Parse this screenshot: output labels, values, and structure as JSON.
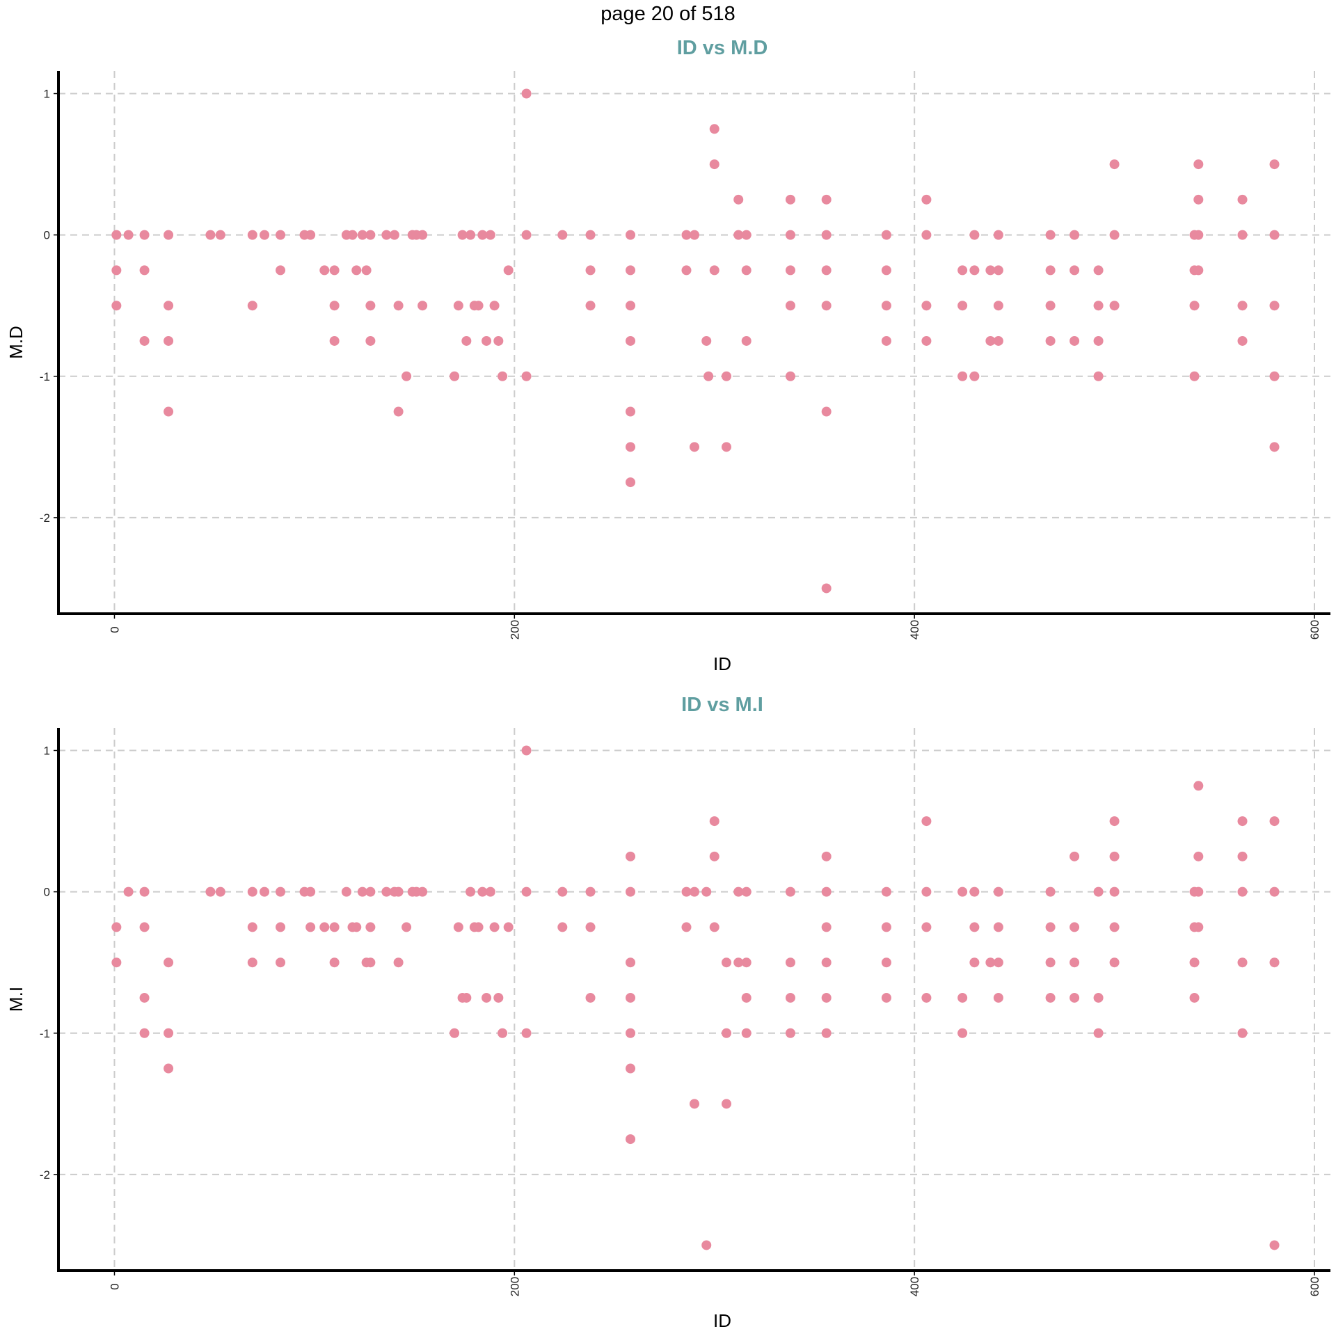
{
  "page_header": "page 20 of 518",
  "colors": {
    "point": "#e8899e",
    "title": "#5f9ea0",
    "grid": "#cccccc"
  },
  "chart_data": [
    {
      "type": "scatter",
      "title": "ID vs M.D",
      "xlabel": "ID",
      "ylabel": "M.D",
      "xlim": [
        -28,
        608
      ],
      "ylim": [
        -2.68,
        1.16
      ],
      "xticks": [
        0,
        200,
        400,
        600
      ],
      "yticks": [
        1,
        0,
        -1,
        -2
      ],
      "grid": true,
      "points": [
        [
          1,
          0
        ],
        [
          1,
          -0.25
        ],
        [
          1,
          -0.5
        ],
        [
          7,
          0
        ],
        [
          15,
          0
        ],
        [
          15,
          -0.25
        ],
        [
          15,
          -0.75
        ],
        [
          27,
          0
        ],
        [
          27,
          -0.5
        ],
        [
          27,
          -0.75
        ],
        [
          27,
          -1.25
        ],
        [
          48,
          0
        ],
        [
          53,
          0
        ],
        [
          69,
          0
        ],
        [
          69,
          -0.5
        ],
        [
          75,
          0
        ],
        [
          83,
          0
        ],
        [
          83,
          -0.25
        ],
        [
          95,
          0
        ],
        [
          98,
          0
        ],
        [
          105,
          -0.25
        ],
        [
          110,
          -0.25
        ],
        [
          110,
          -0.5
        ],
        [
          110,
          -0.75
        ],
        [
          116,
          0
        ],
        [
          119,
          0
        ],
        [
          121,
          -0.25
        ],
        [
          124,
          0
        ],
        [
          126,
          -0.25
        ],
        [
          128,
          0
        ],
        [
          128,
          -0.5
        ],
        [
          128,
          -0.75
        ],
        [
          136,
          0
        ],
        [
          140,
          0
        ],
        [
          142,
          -0.5
        ],
        [
          142,
          -1.25
        ],
        [
          146,
          -1
        ],
        [
          149,
          0
        ],
        [
          151,
          0
        ],
        [
          154,
          0
        ],
        [
          154,
          -0.5
        ],
        [
          170,
          -1
        ],
        [
          172,
          -0.5
        ],
        [
          174,
          0
        ],
        [
          176,
          -0.75
        ],
        [
          178,
          0
        ],
        [
          180,
          -0.5
        ],
        [
          182,
          -0.5
        ],
        [
          184,
          0
        ],
        [
          186,
          -0.75
        ],
        [
          188,
          0
        ],
        [
          190,
          -0.5
        ],
        [
          192,
          -0.75
        ],
        [
          194,
          -1
        ],
        [
          197,
          -0.25
        ],
        [
          206,
          1
        ],
        [
          206,
          0
        ],
        [
          206,
          -1
        ],
        [
          224,
          0
        ],
        [
          238,
          0
        ],
        [
          238,
          -0.25
        ],
        [
          238,
          -0.5
        ],
        [
          258,
          0
        ],
        [
          258,
          -0.25
        ],
        [
          258,
          -0.5
        ],
        [
          258,
          -0.75
        ],
        [
          258,
          -1.25
        ],
        [
          258,
          -1.5
        ],
        [
          258,
          -1.75
        ],
        [
          286,
          0
        ],
        [
          286,
          -0.25
        ],
        [
          290,
          0
        ],
        [
          290,
          -1.5
        ],
        [
          296,
          -0.75
        ],
        [
          297,
          -1
        ],
        [
          300,
          0.75
        ],
        [
          300,
          0.5
        ],
        [
          300,
          -0.25
        ],
        [
          312,
          0.25
        ],
        [
          312,
          0
        ],
        [
          306,
          -1
        ],
        [
          306,
          -1.5
        ],
        [
          316,
          0
        ],
        [
          316,
          -0.25
        ],
        [
          316,
          -0.75
        ],
        [
          338,
          0.25
        ],
        [
          338,
          0
        ],
        [
          338,
          -0.25
        ],
        [
          338,
          -0.5
        ],
        [
          338,
          -1
        ],
        [
          356,
          0.25
        ],
        [
          356,
          0
        ],
        [
          356,
          -0.25
        ],
        [
          356,
          -0.5
        ],
        [
          356,
          -1.25
        ],
        [
          356,
          -2.5
        ],
        [
          386,
          0
        ],
        [
          386,
          -0.25
        ],
        [
          386,
          -0.5
        ],
        [
          386,
          -0.75
        ],
        [
          406,
          0.25
        ],
        [
          406,
          0
        ],
        [
          406,
          -0.5
        ],
        [
          406,
          -0.75
        ],
        [
          424,
          -0.25
        ],
        [
          424,
          -0.5
        ],
        [
          424,
          -1
        ],
        [
          430,
          0
        ],
        [
          430,
          -0.25
        ],
        [
          430,
          -1
        ],
        [
          438,
          -0.25
        ],
        [
          438,
          -0.75
        ],
        [
          442,
          0
        ],
        [
          442,
          -0.25
        ],
        [
          442,
          -0.5
        ],
        [
          442,
          -0.75
        ],
        [
          468,
          0
        ],
        [
          468,
          -0.25
        ],
        [
          468,
          -0.5
        ],
        [
          468,
          -0.75
        ],
        [
          480,
          0
        ],
        [
          480,
          -0.25
        ],
        [
          480,
          -0.75
        ],
        [
          492,
          -0.25
        ],
        [
          492,
          -0.5
        ],
        [
          492,
          -0.75
        ],
        [
          492,
          -1
        ],
        [
          500,
          0.5
        ],
        [
          500,
          0
        ],
        [
          500,
          -0.5
        ],
        [
          540,
          0
        ],
        [
          540,
          -0.25
        ],
        [
          540,
          -0.5
        ],
        [
          540,
          -1
        ],
        [
          542,
          0.5
        ],
        [
          542,
          0.25
        ],
        [
          542,
          0
        ],
        [
          542,
          -0.25
        ],
        [
          564,
          0.25
        ],
        [
          564,
          0
        ],
        [
          564,
          -0.5
        ],
        [
          564,
          -0.75
        ],
        [
          580,
          0.5
        ],
        [
          580,
          0
        ],
        [
          580,
          -0.5
        ],
        [
          580,
          -1
        ],
        [
          580,
          -1.5
        ]
      ]
    },
    {
      "type": "scatter",
      "title": "ID vs M.I",
      "xlabel": "ID",
      "ylabel": "M.I",
      "xlim": [
        -28,
        608
      ],
      "ylim": [
        -2.68,
        1.16
      ],
      "xticks": [
        0,
        200,
        400,
        600
      ],
      "yticks": [
        1,
        0,
        -1,
        -2
      ],
      "grid": true,
      "points": [
        [
          1,
          -0.25
        ],
        [
          1,
          -0.5
        ],
        [
          7,
          0
        ],
        [
          15,
          0
        ],
        [
          15,
          -0.25
        ],
        [
          15,
          -0.75
        ],
        [
          15,
          -1
        ],
        [
          27,
          -0.5
        ],
        [
          27,
          -1
        ],
        [
          27,
          -1.25
        ],
        [
          48,
          0
        ],
        [
          53,
          0
        ],
        [
          69,
          0
        ],
        [
          69,
          -0.25
        ],
        [
          69,
          -0.5
        ],
        [
          75,
          0
        ],
        [
          83,
          0
        ],
        [
          83,
          -0.25
        ],
        [
          83,
          -0.5
        ],
        [
          95,
          0
        ],
        [
          98,
          0
        ],
        [
          98,
          -0.25
        ],
        [
          105,
          -0.25
        ],
        [
          110,
          -0.25
        ],
        [
          110,
          -0.5
        ],
        [
          116,
          0
        ],
        [
          119,
          -0.25
        ],
        [
          121,
          -0.25
        ],
        [
          124,
          0
        ],
        [
          126,
          -0.5
        ],
        [
          128,
          0
        ],
        [
          128,
          -0.25
        ],
        [
          128,
          -0.5
        ],
        [
          136,
          0
        ],
        [
          140,
          0
        ],
        [
          142,
          0
        ],
        [
          142,
          -0.5
        ],
        [
          146,
          -0.25
        ],
        [
          149,
          0
        ],
        [
          151,
          0
        ],
        [
          154,
          0
        ],
        [
          170,
          -1
        ],
        [
          172,
          -0.25
        ],
        [
          174,
          -0.75
        ],
        [
          176,
          -0.75
        ],
        [
          178,
          0
        ],
        [
          180,
          -0.25
        ],
        [
          182,
          -0.25
        ],
        [
          184,
          0
        ],
        [
          186,
          -0.75
        ],
        [
          188,
          0
        ],
        [
          190,
          -0.25
        ],
        [
          192,
          -0.75
        ],
        [
          194,
          -1
        ],
        [
          197,
          -0.25
        ],
        [
          206,
          1
        ],
        [
          206,
          0
        ],
        [
          206,
          -1
        ],
        [
          224,
          0
        ],
        [
          224,
          -0.25
        ],
        [
          238,
          0
        ],
        [
          238,
          -0.25
        ],
        [
          238,
          -0.75
        ],
        [
          258,
          0.25
        ],
        [
          258,
          0
        ],
        [
          258,
          -0.5
        ],
        [
          258,
          -0.75
        ],
        [
          258,
          -1
        ],
        [
          258,
          -1.25
        ],
        [
          258,
          -1.75
        ],
        [
          286,
          0
        ],
        [
          286,
          -0.25
        ],
        [
          290,
          0
        ],
        [
          290,
          -1.5
        ],
        [
          296,
          0
        ],
        [
          296,
          -2.5
        ],
        [
          300,
          0.5
        ],
        [
          300,
          0.25
        ],
        [
          300,
          -0.25
        ],
        [
          306,
          -0.5
        ],
        [
          306,
          -1
        ],
        [
          306,
          -1.5
        ],
        [
          312,
          0
        ],
        [
          312,
          -0.5
        ],
        [
          316,
          0
        ],
        [
          316,
          -0.5
        ],
        [
          316,
          -0.75
        ],
        [
          316,
          -1
        ],
        [
          338,
          0
        ],
        [
          338,
          -0.5
        ],
        [
          338,
          -0.75
        ],
        [
          338,
          -1
        ],
        [
          356,
          0.25
        ],
        [
          356,
          0
        ],
        [
          356,
          -0.25
        ],
        [
          356,
          -0.5
        ],
        [
          356,
          -0.75
        ],
        [
          356,
          -1
        ],
        [
          386,
          0
        ],
        [
          386,
          -0.25
        ],
        [
          386,
          -0.5
        ],
        [
          386,
          -0.75
        ],
        [
          406,
          0.5
        ],
        [
          406,
          0
        ],
        [
          406,
          -0.25
        ],
        [
          406,
          -0.75
        ],
        [
          424,
          0
        ],
        [
          424,
          -0.75
        ],
        [
          424,
          -1
        ],
        [
          430,
          0
        ],
        [
          430,
          -0.25
        ],
        [
          430,
          -0.5
        ],
        [
          438,
          -0.5
        ],
        [
          442,
          0
        ],
        [
          442,
          -0.25
        ],
        [
          442,
          -0.5
        ],
        [
          442,
          -0.75
        ],
        [
          468,
          0
        ],
        [
          468,
          -0.25
        ],
        [
          468,
          -0.5
        ],
        [
          468,
          -0.75
        ],
        [
          480,
          0.25
        ],
        [
          480,
          -0.25
        ],
        [
          480,
          -0.5
        ],
        [
          480,
          -0.75
        ],
        [
          492,
          0
        ],
        [
          492,
          -0.75
        ],
        [
          492,
          -1
        ],
        [
          500,
          0.5
        ],
        [
          500,
          0.25
        ],
        [
          500,
          0
        ],
        [
          500,
          -0.25
        ],
        [
          500,
          -0.5
        ],
        [
          540,
          0
        ],
        [
          540,
          -0.25
        ],
        [
          540,
          -0.5
        ],
        [
          540,
          -0.75
        ],
        [
          542,
          0.75
        ],
        [
          542,
          0.25
        ],
        [
          542,
          0
        ],
        [
          542,
          -0.25
        ],
        [
          564,
          0.5
        ],
        [
          564,
          0.25
        ],
        [
          564,
          0
        ],
        [
          564,
          -0.5
        ],
        [
          564,
          -1
        ],
        [
          580,
          0.5
        ],
        [
          580,
          0
        ],
        [
          580,
          -0.5
        ],
        [
          580,
          -2.5
        ]
      ]
    }
  ]
}
